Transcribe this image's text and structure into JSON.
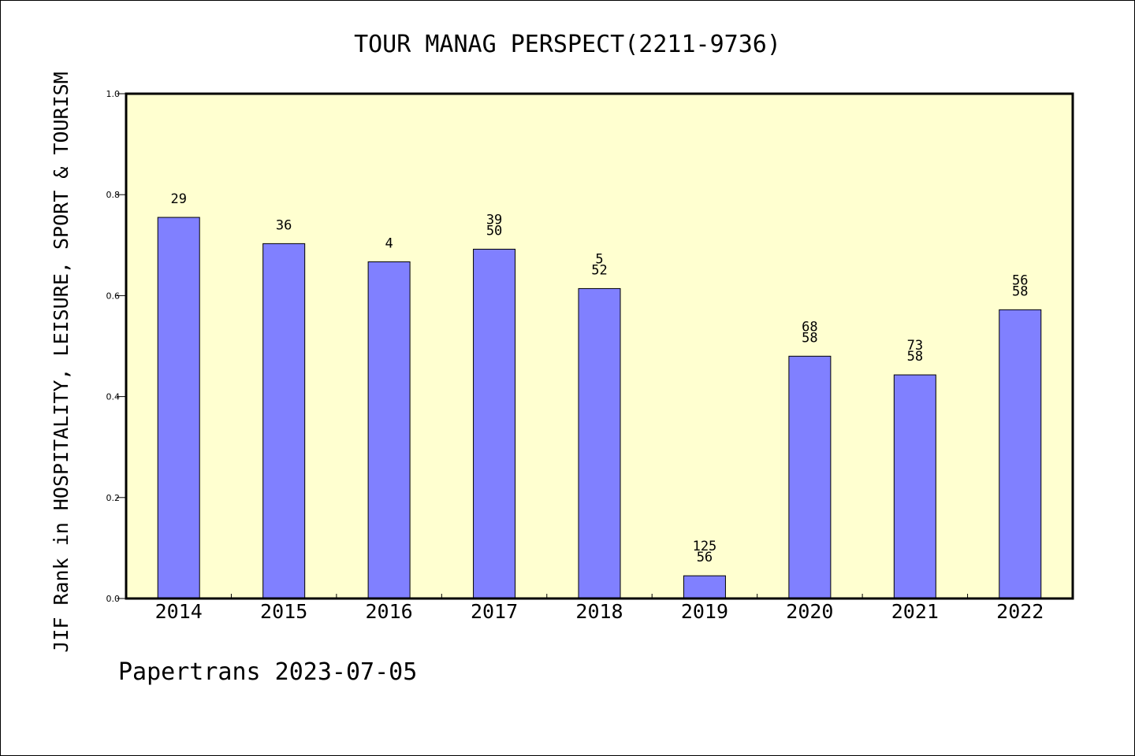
{
  "chart_data": {
    "type": "bar",
    "title": "TOUR MANAG PERSPECT(2211-9736)",
    "xlabel": "",
    "ylabel": "JIF Rank in HOSPITALITY, LEISURE, SPORT & TOURISM",
    "categories": [
      "2014",
      "2015",
      "2016",
      "2017",
      "2018",
      "2019",
      "2020",
      "2021",
      "2022"
    ],
    "values": [
      0.755,
      0.703,
      0.667,
      0.692,
      0.614,
      0.045,
      0.48,
      0.443,
      0.572
    ],
    "bar_labels": [
      [
        "29"
      ],
      [
        "36"
      ],
      [
        "4"
      ],
      [
        "39",
        "50"
      ],
      [
        "5",
        "52"
      ],
      [
        "125",
        "56"
      ],
      [
        "68",
        "58"
      ],
      [
        "73",
        "58"
      ],
      [
        "56",
        "58"
      ]
    ],
    "ylim": [
      0,
      1.0
    ],
    "yticks": [
      "0.0",
      "0.2",
      "0.4",
      "0.6",
      "0.8",
      "1.0"
    ],
    "grid": false,
    "colors": {
      "bar": "#8080ff",
      "plot_background": "#ffffd0",
      "axes": "#000000"
    }
  },
  "footer": "Papertrans 2023-07-05"
}
